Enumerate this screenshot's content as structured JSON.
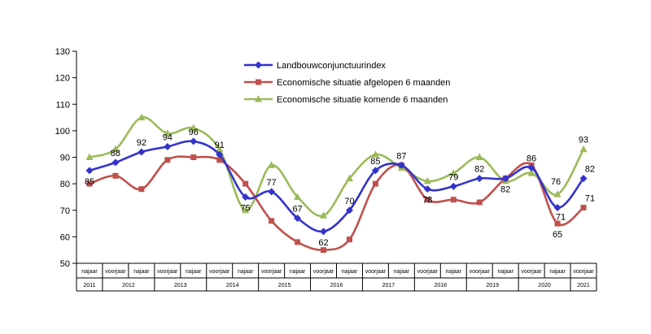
{
  "chart_data": {
    "type": "line",
    "title": "",
    "xlabel": "",
    "ylabel": "",
    "ylim": [
      50,
      130
    ],
    "yticks": [
      "50",
      "60",
      "70",
      "80",
      "90",
      "100",
      "110",
      "120",
      "130"
    ],
    "grid": false,
    "legend_position": "top-center",
    "categories": [
      "najaar",
      "voorjaar",
      "najaar",
      "voorjaar",
      "najaar",
      "voorjaar",
      "najaar",
      "voorjaar",
      "najaar",
      "voorjaar",
      "najaar",
      "voorjaar",
      "najaar",
      "voorjaar",
      "najaar",
      "voorjaar",
      "najaar",
      "voorjaar",
      "najaar",
      "voorjaar"
    ],
    "years": [
      {
        "label": "2011",
        "span": 1
      },
      {
        "label": "2012",
        "span": 2
      },
      {
        "label": "2013",
        "span": 2
      },
      {
        "label": "2014",
        "span": 2
      },
      {
        "label": "2015",
        "span": 2
      },
      {
        "label": "2016",
        "span": 2
      },
      {
        "label": "2017",
        "span": 2
      },
      {
        "label": "2018",
        "span": 2
      },
      {
        "label": "2019",
        "span": 2
      },
      {
        "label": "2020",
        "span": 2
      },
      {
        "label": "2021",
        "span": 1
      }
    ],
    "series": [
      {
        "name": "Landbouwconjunctuurindex",
        "color": "#3333cc",
        "marker": "diamond",
        "values": [
          85,
          88,
          92,
          94,
          96,
          91,
          75,
          77,
          67,
          62,
          70,
          85,
          87,
          78,
          79,
          82,
          82,
          86,
          71,
          82
        ],
        "labels": [
          "85",
          "88",
          "92",
          "94",
          "96",
          "91",
          "75",
          "77",
          "67",
          "62",
          "70",
          "85",
          "87",
          "78",
          "79",
          "82",
          "82",
          "86",
          "71",
          "82"
        ]
      },
      {
        "name": "Economische situatie afgelopen 6 maanden",
        "color": "#c0504d",
        "marker": "square",
        "values": [
          80,
          83,
          78,
          89,
          90,
          89,
          80,
          66,
          58,
          55,
          59,
          80,
          87,
          74,
          74,
          73,
          82,
          87,
          65,
          71
        ],
        "labels": [
          "",
          "",
          "",
          "",
          "",
          "",
          "",
          "",
          "",
          "",
          "",
          "",
          "",
          "",
          "",
          "",
          "",
          "",
          "65",
          "71"
        ]
      },
      {
        "name": "Economische situatie komende 6 maanden",
        "color": "#9bbb59",
        "marker": "triangle",
        "values": [
          90,
          93,
          105,
          99,
          101,
          93,
          70,
          87,
          75,
          68,
          82,
          91,
          86,
          81,
          84,
          90,
          81,
          84,
          76,
          93
        ],
        "labels": [
          "",
          "",
          "",
          "",
          "",
          "",
          "",
          "",
          "",
          "",
          "",
          "",
          "",
          "",
          "",
          "",
          "",
          "",
          "76",
          "93"
        ]
      }
    ]
  }
}
